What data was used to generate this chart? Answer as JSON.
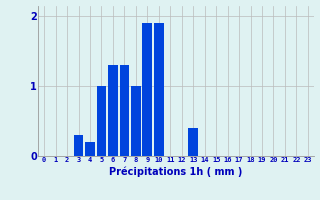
{
  "categories": [
    0,
    1,
    2,
    3,
    4,
    5,
    6,
    7,
    8,
    9,
    10,
    11,
    12,
    13,
    14,
    15,
    16,
    17,
    18,
    19,
    20,
    21,
    22,
    23
  ],
  "values": [
    0,
    0,
    0,
    0.3,
    0.2,
    1.0,
    1.3,
    1.3,
    1.0,
    1.9,
    1.9,
    0,
    0,
    0.4,
    0,
    0,
    0,
    0,
    0,
    0,
    0,
    0,
    0,
    0
  ],
  "bar_color": "#0044dd",
  "background_color": "#dff2f2",
  "grid_color": "#bbbbbb",
  "xlabel": "Précipitations 1h ( mm )",
  "xlabel_color": "#0000bb",
  "tick_color": "#0000bb",
  "yticks": [
    0,
    1,
    2
  ],
  "ylim": [
    0,
    2.15
  ],
  "xlim": [
    -0.5,
    23.5
  ]
}
